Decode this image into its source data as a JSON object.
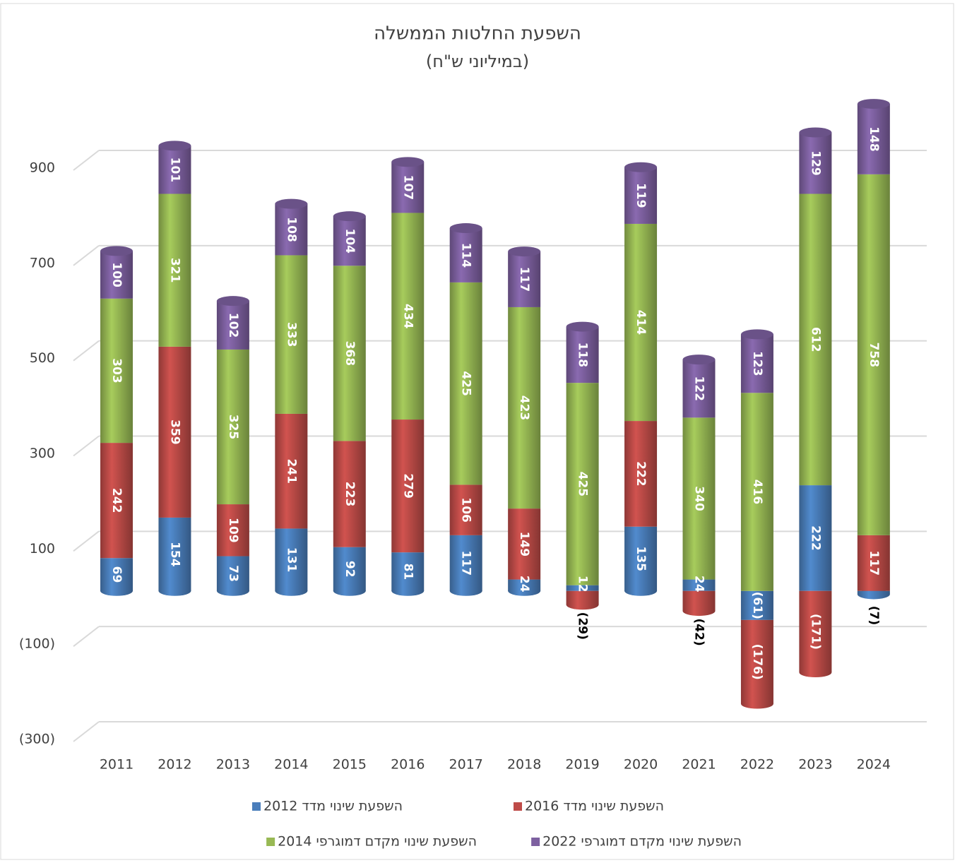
{
  "chart_data": {
    "type": "bar",
    "stacked": true,
    "title": "השפעת החלטות הממשלה",
    "subtitle": "(במיליוני ש\"ח)",
    "categories": [
      "2011",
      "2012",
      "2013",
      "2014",
      "2015",
      "2016",
      "2017",
      "2018",
      "2019",
      "2020",
      "2021",
      "2022",
      "2023",
      "2024"
    ],
    "series": [
      {
        "name": "השפעת שינוי מדד 2012",
        "color": "#4a7ebb",
        "values": [
          69,
          154,
          73,
          131,
          92,
          81,
          117,
          24,
          12,
          135,
          24,
          -61,
          222,
          -7
        ],
        "value_labels": [
          "69",
          "154",
          "73",
          "131",
          "92",
          "81",
          "117",
          "24",
          "12",
          "135",
          "24",
          "(61)",
          "222",
          "(7)"
        ]
      },
      {
        "name": "השפעת שינוי מדד 2016",
        "color": "#be4b48",
        "values": [
          242,
          359,
          109,
          241,
          223,
          279,
          106,
          149,
          -29,
          222,
          -42,
          -176,
          -171,
          117
        ],
        "value_labels": [
          "242",
          "359",
          "109",
          "241",
          "223",
          "279",
          "106",
          "149",
          "(29)",
          "222",
          "(42)",
          "(176)",
          "(171)",
          "117"
        ]
      },
      {
        "name": "השפעת שינוי מקדם דמוגרפי 2014",
        "color": "#98b954",
        "values": [
          303,
          321,
          325,
          333,
          368,
          434,
          425,
          423,
          425,
          414,
          340,
          416,
          612,
          758
        ]
      },
      {
        "name": "השפעת שינוי מקדם דמוגרפי 2022",
        "color": "#7d60a0",
        "values": [
          100,
          101,
          102,
          108,
          104,
          107,
          114,
          117,
          118,
          119,
          122,
          123,
          129,
          148
        ]
      }
    ],
    "ylim": [
      -300,
      1100
    ],
    "yticks": [
      {
        "value": -300,
        "label": "(300)"
      },
      {
        "value": -100,
        "label": "(100)"
      },
      100,
      300,
      500,
      700,
      900
    ],
    "grid": true,
    "legend": "bottom"
  }
}
